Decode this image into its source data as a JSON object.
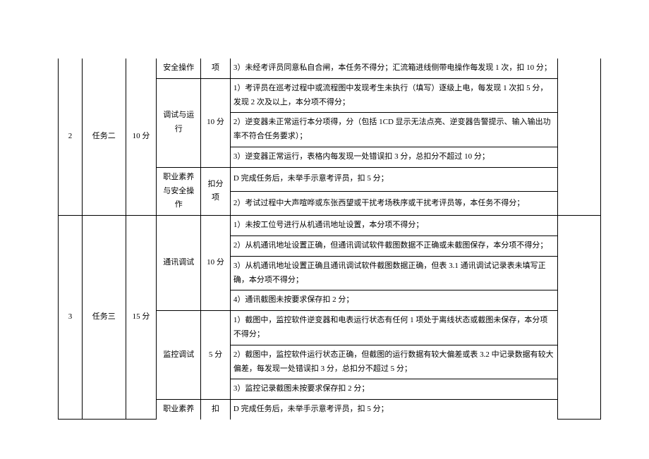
{
  "rows": {
    "r0_item": "安全操作",
    "r0_pts": "项",
    "r0_desc": "3）未经考评员同意私自合闸，本任务不得分；汇流箱进线侧带电操作每发现 1 次，扣 10 分；",
    "r1_seq": "2",
    "r1_task": "任务二",
    "r1_score": "10 分",
    "r1_item": "调试与运行",
    "r1_pts": "10 分",
    "r1_desc": "1）考评员在巡考过程中或流程图中发现考生未执行（填写）逐级上电，每发现 1 次扣 5 分，发现 2 次及以上，本分项不得分；",
    "r2_desc": "2）逆变器未正常运行本分项得，分（包括 1CD 显示无法点亮、逆变器告警提示、输入输出功率不符合任务要求）；",
    "r3_desc": "3）逆变器正常运行，表格内每发现一处错误扣 3 分，总扣分不超过 10 分；",
    "r4_item": "职业素养与安全操作",
    "r4_pts": "扣分项",
    "r4_desc": "D 完成任务后，未举手示意考评员，扣 5 分；",
    "r5_desc": "2）考试过程中大声喧哗或东张西望或干扰考场秩序或干扰考评员等，本任务不得分；",
    "r6_seq": "3",
    "r6_task": "任务三",
    "r6_score": "15 分",
    "r6_item": "通讯调试",
    "r6_pts": "10 分",
    "r6_desc": "1）未按工位号进行从机通讯地址设置，本分项不得分；",
    "r7_desc": "2）从机通讯地址设置正确，但通讯调试软件截图数据不正确或未截图保存，本分项不得分；",
    "r8_desc": "3）从机通讯地址设置正确且通讯调试软件截图数据正确，但表 3.1 通讯调试记录表未填写正确，本分项不得分；",
    "r9_desc": "4）通讯截图未按要求保存扣 2 分；",
    "r10_item": "监控调试",
    "r10_pts": "5 分",
    "r10_desc": "1）截图中，监控软件逆变器和电表运行状态有任何 1 项处于离线状态或截图未保存，本分项不得分；",
    "r11_desc": "2）截图中，监控软件运行状态正确，但截图的运行数据有较大偏差或表 3.2 中记录数据有较大偏差，每发现一处错误扣 3 分，总扣分不超过 5 分；",
    "r12_desc": "3）监控记录截图未按要求保存扣 2 分；",
    "r13_item": "职业素养",
    "r13_pts": "扣",
    "r13_desc": "D 完成任务后，未举手示意考评员，扣 5 分；"
  }
}
